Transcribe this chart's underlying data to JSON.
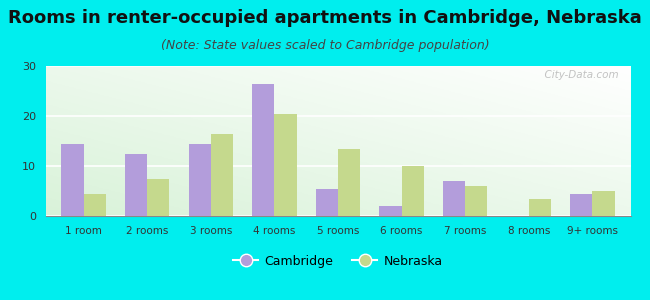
{
  "title": "Rooms in renter-occupied apartments in Cambridge, Nebraska",
  "subtitle": "(Note: State values scaled to Cambridge population)",
  "categories": [
    "1 room",
    "2 rooms",
    "3 rooms",
    "4 rooms",
    "5 rooms",
    "6 rooms",
    "7 rooms",
    "8 rooms",
    "9+ rooms"
  ],
  "cambridge_values": [
    14.5,
    12.5,
    14.5,
    26.5,
    5.5,
    2.0,
    7.0,
    0,
    4.5
  ],
  "nebraska_values": [
    4.5,
    7.5,
    16.5,
    20.5,
    13.5,
    10.0,
    6.0,
    3.5,
    5.0
  ],
  "cambridge_color": "#b39ddb",
  "nebraska_color": "#c5d98d",
  "background_color": "#00eeee",
  "ylim": [
    0,
    30
  ],
  "yticks": [
    0,
    10,
    20,
    30
  ],
  "title_fontsize": 13,
  "subtitle_fontsize": 9,
  "legend_labels": [
    "Cambridge",
    "Nebraska"
  ],
  "watermark": "① City-Data.com",
  "bar_width": 0.35
}
